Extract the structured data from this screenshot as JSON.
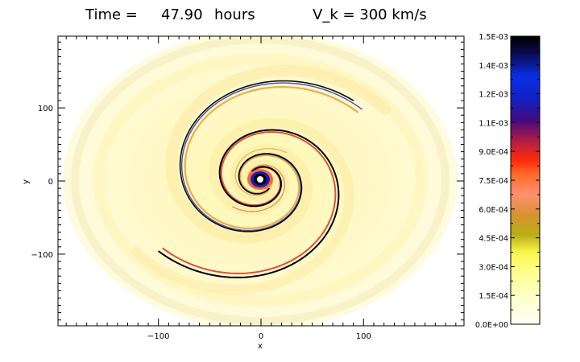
{
  "header": {
    "time_label": "Time =",
    "time_value": "47.90",
    "time_unit": "hours",
    "velocity": "V_k = 300 km/s"
  },
  "plot": {
    "xlabel": "x",
    "ylabel": "y",
    "xlim": [
      -198,
      198
    ],
    "ylim": [
      -198,
      198
    ],
    "x_ticks": [
      {
        "value": -100,
        "label": "−100"
      },
      {
        "value": 0,
        "label": "0"
      },
      {
        "value": 100,
        "label": "100"
      }
    ],
    "y_ticks": [
      {
        "value": 100,
        "label": "100"
      },
      {
        "value": 0,
        "label": "0"
      },
      {
        "value": -100,
        "label": "−100"
      }
    ]
  },
  "colorbar": {
    "min": 0,
    "max": 0.0015,
    "labels": [
      "1.5E-03",
      "1.4E-03",
      "1.2E-03",
      "1.1E-03",
      "9.0E-04",
      "7.5E-04",
      "6.0E-04",
      "4.5E-04",
      "3.0E-04",
      "1.5E-04",
      "0.0E+00"
    ],
    "colors": [
      "#fffff5",
      "#ffffc8",
      "#ffff8c",
      "#fbf54a",
      "#b9ad17",
      "#d89230",
      "#ff9070",
      "#ff6a2a",
      "#ff2a0a",
      "#b81f40",
      "#420a80",
      "#1020c0",
      "#0a2ee6",
      "#0a0a50",
      "#000000"
    ]
  }
}
